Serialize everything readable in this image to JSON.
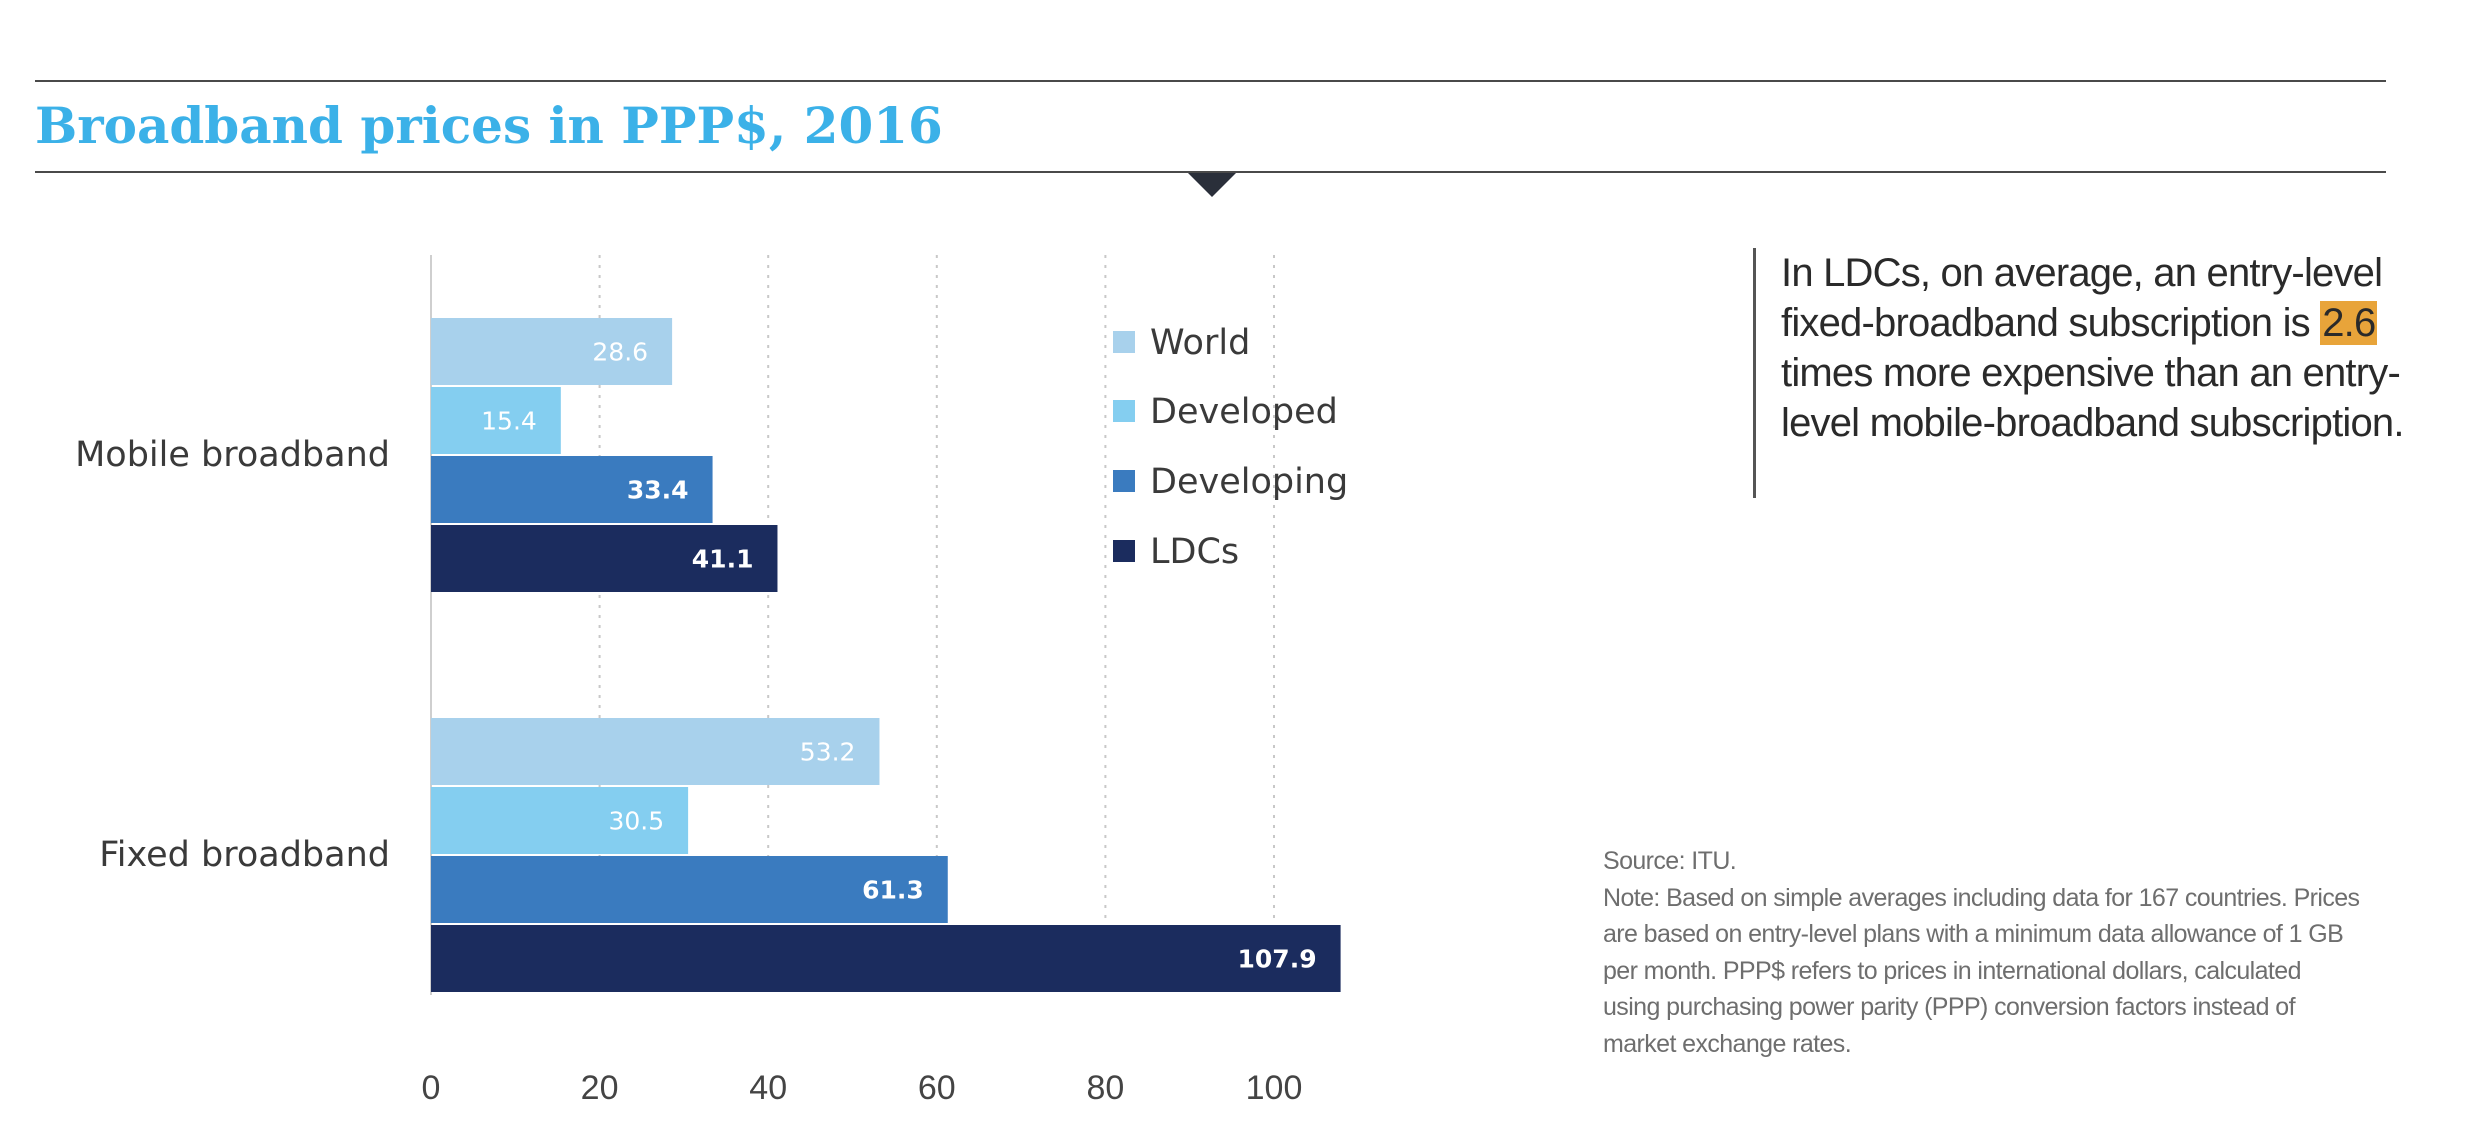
{
  "title": "Broadband prices in PPP$, 2016",
  "callout": {
    "before": "In LDCs, on average, an entry-level fixed-broadband subscription is",
    "highlight": "2.6",
    "after": "times more expensive than an entry-level mobile-broadband subscription."
  },
  "source": "Source: ITU.",
  "note": "Note: Based on simple averages including data for 167 countries. Prices are based on entry-level plans with a minimum data allowance of 1 GB per month. PPP$ refers to prices in international dollars, calculated using purchasing power parity (PPP) conversion factors instead of market exchange rates.",
  "chart_data": {
    "type": "bar",
    "orientation": "horizontal",
    "categories": [
      "Mobile broadband",
      "Fixed broadband"
    ],
    "series": [
      {
        "name": "World",
        "values": [
          28.6,
          53.2
        ],
        "color": "#a8d1ec"
      },
      {
        "name": "Developed",
        "values": [
          15.4,
          30.5
        ],
        "color": "#84cef0"
      },
      {
        "name": "Developing",
        "values": [
          33.4,
          61.3
        ],
        "color": "#3a7bbf"
      },
      {
        "name": "LDCs",
        "values": [
          41.1,
          107.9
        ],
        "color": "#1b2c5e"
      }
    ],
    "xticks": [
      0,
      20,
      40,
      60,
      80,
      100
    ],
    "xlim": [
      0,
      110
    ],
    "grid": true,
    "legend": "inside-top-right",
    "data_labels": true
  }
}
